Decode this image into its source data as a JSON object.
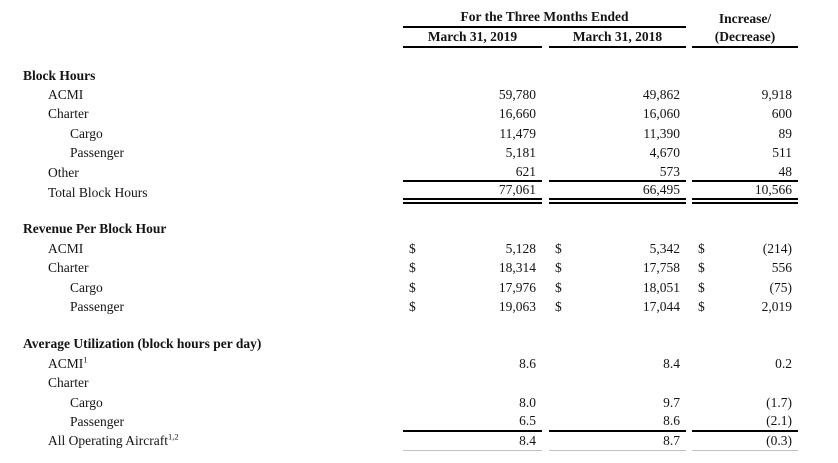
{
  "table": {
    "dollar": "$",
    "header": {
      "period_group": "For the Three Months Ended",
      "col_2019": "March 31, 2019",
      "col_2018": "March 31, 2018",
      "change_line1": "Increase/",
      "change_line2": "(Decrease)"
    },
    "sections": [
      {
        "title": "Block Hours",
        "rows": [
          {
            "label": "ACMI",
            "v2019": "59,780",
            "v2018": "49,862",
            "change": "9,918"
          },
          {
            "label": "Charter",
            "v2019": "16,660",
            "v2018": "16,060",
            "change": "600"
          },
          {
            "label": "Cargo",
            "v2019": "11,479",
            "v2018": "11,390",
            "change": "89"
          },
          {
            "label": "Passenger",
            "v2019": "5,181",
            "v2018": "4,670",
            "change": "511"
          },
          {
            "label": "Other",
            "v2019": "621",
            "v2018": "573",
            "change": "48"
          },
          {
            "label": "Total Block Hours",
            "v2019": "77,061",
            "v2018": "66,495",
            "change": "10,566"
          }
        ]
      },
      {
        "title": "Revenue Per Block Hour",
        "rows": [
          {
            "label": "ACMI",
            "v2019": "5,128",
            "v2018": "5,342",
            "change": "(214)"
          },
          {
            "label": "Charter",
            "v2019": "18,314",
            "v2018": "17,758",
            "change": "556"
          },
          {
            "label": "Cargo",
            "v2019": "17,976",
            "v2018": "18,051",
            "change": "(75)"
          },
          {
            "label": "Passenger",
            "v2019": "19,063",
            "v2018": "17,044",
            "change": "2,019"
          }
        ]
      },
      {
        "title": "Average Utilization (block hours per day)",
        "rows": [
          {
            "label": "ACMI",
            "sup": "1",
            "v2019": "8.6",
            "v2018": "8.4",
            "change": "0.2"
          },
          {
            "label": "Charter",
            "v2019": "",
            "v2018": "",
            "change": ""
          },
          {
            "label": "Cargo",
            "v2019": "8.0",
            "v2018": "9.7",
            "change": "(1.7)"
          },
          {
            "label": "Passenger",
            "v2019": "6.5",
            "v2018": "8.6",
            "change": "(2.1)"
          },
          {
            "label": "All Operating Aircraft",
            "sup": "1,2",
            "v2019": "8.4",
            "v2018": "8.7",
            "change": "(0.3)"
          }
        ]
      }
    ]
  }
}
